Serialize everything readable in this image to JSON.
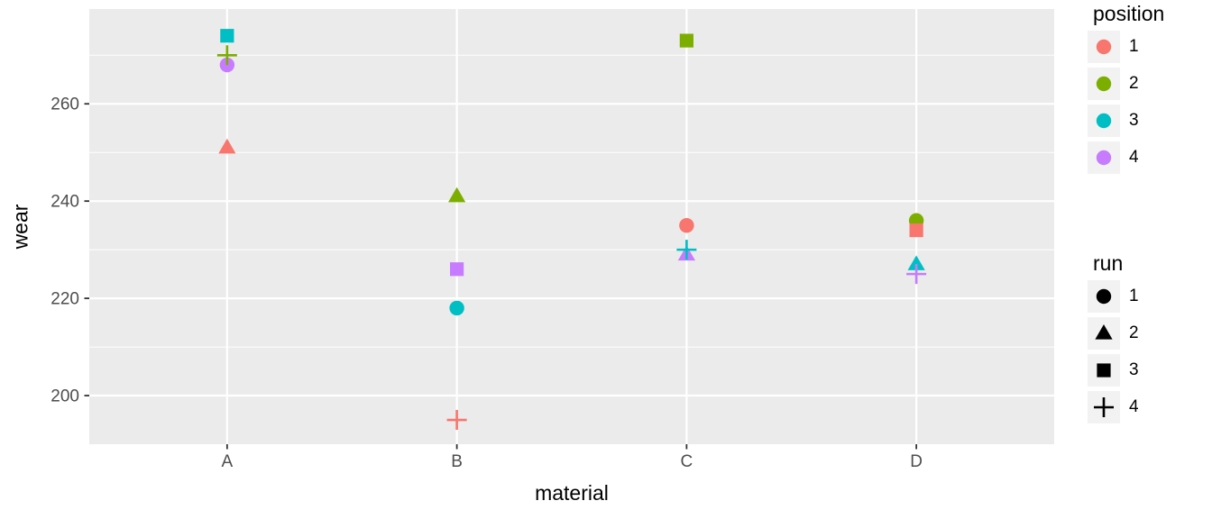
{
  "figure": {
    "background": "#FFFFFF",
    "panel_background": "#EBEBEB",
    "grid_major_color": "#FFFFFF",
    "grid_minor_color": "#FFFFFF",
    "tick_color": "#333333",
    "axis_text_color": "#4D4D4D",
    "legend_key_background": "#F2F2F2"
  },
  "chart_data": {
    "type": "scatter",
    "title": "",
    "xlabel": "material",
    "ylabel": "wear",
    "x_categories": [
      "A",
      "B",
      "C",
      "D"
    ],
    "y_ticks": [
      200,
      220,
      240,
      260
    ],
    "y_minor_ticks": [
      210,
      230,
      250,
      270
    ],
    "ylim": [
      190,
      279.5
    ],
    "color_by": "position",
    "shape_by": "run",
    "position_colors": {
      "1": "#F8766D",
      "2": "#7CAE00",
      "3": "#00BFC4",
      "4": "#C77CFF"
    },
    "run_shapes": {
      "1": "circle",
      "2": "triangle",
      "3": "square",
      "4": "plus"
    },
    "points": [
      {
        "material": "C",
        "wear": 235,
        "position": 1,
        "run": 1
      },
      {
        "material": "D",
        "wear": 236,
        "position": 2,
        "run": 1
      },
      {
        "material": "B",
        "wear": 218,
        "position": 3,
        "run": 1
      },
      {
        "material": "A",
        "wear": 268,
        "position": 4,
        "run": 1
      },
      {
        "material": "A",
        "wear": 251,
        "position": 1,
        "run": 2
      },
      {
        "material": "B",
        "wear": 241,
        "position": 2,
        "run": 2
      },
      {
        "material": "D",
        "wear": 227,
        "position": 3,
        "run": 2
      },
      {
        "material": "C",
        "wear": 229,
        "position": 4,
        "run": 2
      },
      {
        "material": "D",
        "wear": 234,
        "position": 1,
        "run": 3
      },
      {
        "material": "C",
        "wear": 273,
        "position": 2,
        "run": 3
      },
      {
        "material": "A",
        "wear": 274,
        "position": 3,
        "run": 3
      },
      {
        "material": "B",
        "wear": 226,
        "position": 4,
        "run": 3
      },
      {
        "material": "B",
        "wear": 195,
        "position": 1,
        "run": 4
      },
      {
        "material": "A",
        "wear": 270,
        "position": 2,
        "run": 4
      },
      {
        "material": "C",
        "wear": 230,
        "position": 3,
        "run": 4
      },
      {
        "material": "D",
        "wear": 225,
        "position": 4,
        "run": 4
      }
    ]
  },
  "legends": [
    {
      "title": "position",
      "type": "color",
      "items": [
        {
          "label": "1",
          "color": "#F8766D",
          "shape": "circle"
        },
        {
          "label": "2",
          "color": "#7CAE00",
          "shape": "circle"
        },
        {
          "label": "3",
          "color": "#00BFC4",
          "shape": "circle"
        },
        {
          "label": "4",
          "color": "#C77CFF",
          "shape": "circle"
        }
      ]
    },
    {
      "title": "run",
      "type": "shape",
      "items": [
        {
          "label": "1",
          "color": "#000000",
          "shape": "circle"
        },
        {
          "label": "2",
          "color": "#000000",
          "shape": "triangle"
        },
        {
          "label": "3",
          "color": "#000000",
          "shape": "square"
        },
        {
          "label": "4",
          "color": "#000000",
          "shape": "plus"
        }
      ]
    }
  ]
}
